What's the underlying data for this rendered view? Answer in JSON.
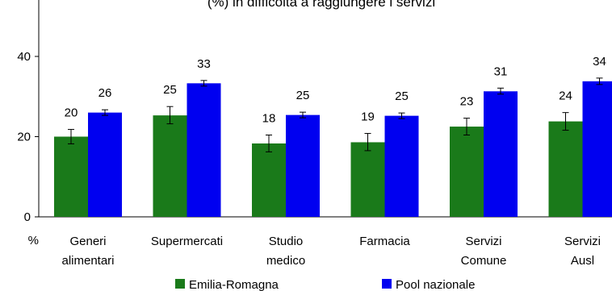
{
  "chart_data": {
    "type": "bar",
    "title": "(%) in difficoltà a raggiungere i servizi",
    "xlabel": "",
    "ylabel": "%",
    "ylim": [
      0,
      50
    ],
    "yticks": [
      0,
      20,
      40
    ],
    "grid": false,
    "legend_position": "bottom",
    "categories": [
      [
        "Generi",
        "alimentari"
      ],
      [
        "Supermercati"
      ],
      [
        "Studio",
        "medico"
      ],
      [
        "Farmacia"
      ],
      [
        "Servizi",
        "Comune"
      ],
      [
        "Servizi",
        "Ausl"
      ]
    ],
    "series": [
      {
        "name": "Emilia-Romagna",
        "color": "#1a7a1a",
        "values": [
          20,
          25.3,
          18.3,
          18.6,
          22.5,
          23.8
        ],
        "labels": [
          "20",
          "25",
          "18",
          "19",
          "23",
          "24"
        ],
        "error_low": [
          18.2,
          23.2,
          16.2,
          16.5,
          20.4,
          21.6
        ],
        "error_high": [
          21.8,
          27.5,
          20.4,
          20.8,
          24.6,
          26.0
        ]
      },
      {
        "name": "Pool nazionale",
        "color": "#0000f0",
        "values": [
          26,
          33.3,
          25.4,
          25.2,
          31.3,
          33.8
        ],
        "labels": [
          "26",
          "33",
          "25",
          "25",
          "31",
          "34"
        ],
        "error_low": [
          25.3,
          32.6,
          24.7,
          24.5,
          30.6,
          33.0
        ],
        "error_high": [
          26.7,
          34.0,
          26.1,
          25.9,
          32.1,
          34.6
        ]
      }
    ]
  }
}
